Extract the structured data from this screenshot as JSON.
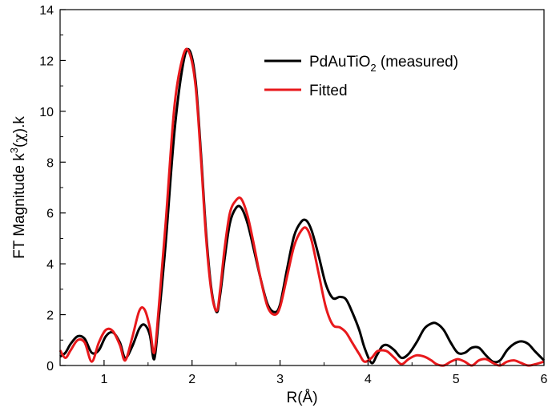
{
  "chart_data": {
    "type": "line",
    "title": "",
    "xlabel": "R(Å)",
    "ylabel": {
      "pre": "FT Magnitude k",
      "sup": "3",
      "mid": "(",
      "chi": "χ",
      "post": ").k"
    },
    "xlim": [
      0.5,
      6
    ],
    "ylim": [
      0,
      14
    ],
    "xticks": [
      "1",
      "2",
      "3",
      "4",
      "5",
      "6"
    ],
    "yticks": [
      "0",
      "2",
      "4",
      "6",
      "8",
      "10",
      "12",
      "14"
    ],
    "grid": false,
    "legend_position": "top-right",
    "series": [
      {
        "label_parts": {
          "pre": "PdAuTiO",
          "sub": "2",
          "post": " (measured)"
        },
        "color": "#000000",
        "x": [
          0.5,
          0.56,
          0.62,
          0.7,
          0.78,
          0.86,
          0.94,
          1.02,
          1.1,
          1.18,
          1.24,
          1.32,
          1.4,
          1.46,
          1.52,
          1.57,
          1.62,
          1.7,
          1.8,
          1.9,
          1.97,
          2.04,
          2.1,
          2.16,
          2.22,
          2.28,
          2.32,
          2.37,
          2.43,
          2.5,
          2.56,
          2.63,
          2.7,
          2.78,
          2.86,
          2.94,
          3.0,
          3.08,
          3.16,
          3.24,
          3.3,
          3.36,
          3.44,
          3.52,
          3.6,
          3.68,
          3.75,
          3.82,
          3.9,
          3.96,
          4.04,
          4.1,
          4.16,
          4.22,
          4.3,
          4.38,
          4.46,
          4.55,
          4.64,
          4.72,
          4.78,
          4.86,
          4.94,
          5.02,
          5.1,
          5.18,
          5.26,
          5.34,
          5.42,
          5.5,
          5.58,
          5.66,
          5.74,
          5.82,
          5.9,
          6.0
        ],
        "y": [
          0.35,
          0.5,
          0.85,
          1.15,
          1.05,
          0.5,
          0.6,
          1.15,
          1.3,
          0.9,
          0.3,
          0.75,
          1.45,
          1.6,
          1.2,
          0.25,
          1.8,
          4.8,
          9.2,
          11.9,
          12.4,
          11.2,
          8.4,
          5.2,
          3.0,
          2.1,
          2.8,
          4.2,
          5.6,
          6.2,
          6.2,
          5.6,
          4.6,
          3.4,
          2.4,
          2.1,
          2.4,
          3.8,
          5.1,
          5.65,
          5.7,
          5.3,
          4.3,
          3.2,
          2.65,
          2.7,
          2.6,
          2.1,
          1.4,
          0.7,
          0.1,
          0.4,
          0.75,
          0.8,
          0.6,
          0.3,
          0.45,
          0.9,
          1.45,
          1.65,
          1.65,
          1.4,
          0.9,
          0.5,
          0.5,
          0.7,
          0.7,
          0.4,
          0.15,
          0.2,
          0.6,
          0.85,
          0.95,
          0.85,
          0.55,
          0.2
        ]
      },
      {
        "label": "Fitted",
        "color": "#e8191c",
        "x": [
          0.5,
          0.56,
          0.62,
          0.7,
          0.78,
          0.86,
          0.94,
          1.02,
          1.1,
          1.18,
          1.24,
          1.32,
          1.4,
          1.46,
          1.52,
          1.57,
          1.62,
          1.7,
          1.8,
          1.9,
          1.97,
          2.04,
          2.1,
          2.16,
          2.22,
          2.28,
          2.32,
          2.37,
          2.43,
          2.5,
          2.56,
          2.63,
          2.7,
          2.78,
          2.86,
          2.94,
          3.0,
          3.08,
          3.16,
          3.24,
          3.3,
          3.36,
          3.44,
          3.52,
          3.6,
          3.68,
          3.75,
          3.82,
          3.9,
          3.96,
          4.04,
          4.1,
          4.16,
          4.22,
          4.3,
          4.38,
          4.46,
          4.55,
          4.64,
          4.72,
          4.78,
          4.86,
          4.94,
          5.02,
          5.1,
          5.18,
          5.26,
          5.34,
          5.42,
          5.5,
          5.58,
          5.66,
          5.74,
          5.82,
          5.9,
          6.0
        ],
        "y": [
          0.6,
          0.3,
          0.6,
          1.0,
          0.9,
          0.15,
          0.9,
          1.4,
          1.35,
          0.8,
          0.2,
          1.1,
          2.15,
          2.2,
          1.5,
          0.5,
          2.2,
          5.6,
          10.2,
          12.2,
          12.3,
          11.0,
          8.2,
          5.0,
          2.9,
          2.15,
          3.0,
          4.6,
          6.0,
          6.5,
          6.55,
          5.9,
          4.8,
          3.4,
          2.3,
          2.0,
          2.3,
          3.5,
          4.7,
          5.3,
          5.4,
          4.9,
          3.6,
          2.3,
          1.6,
          1.5,
          1.3,
          0.9,
          0.45,
          0.15,
          0.3,
          0.55,
          0.6,
          0.55,
          0.3,
          0.05,
          0.25,
          0.4,
          0.35,
          0.2,
          0.05,
          0.0,
          0.15,
          0.25,
          0.15,
          0.0,
          0.2,
          0.25,
          0.1,
          0.0,
          0.15,
          0.2,
          0.1,
          0.0,
          0.05,
          0.15
        ]
      }
    ]
  }
}
